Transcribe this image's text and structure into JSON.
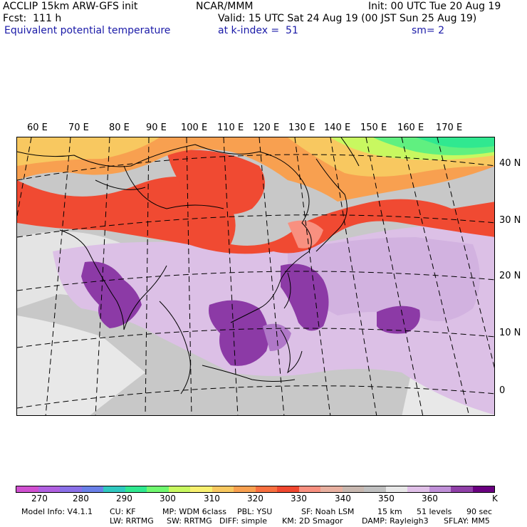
{
  "header": {
    "title": "ACCLIP 15km ARW-GFS init",
    "forecast": "Fcst:  111 h",
    "field_name": "Equivalent potential temperature",
    "center": "NCAR/MMM",
    "init": "Init: 00 UTC Tue 20 Aug 19",
    "valid": "Valid: 15 UTC Sat 24 Aug 19 (00 JST Sun 25 Aug 19)",
    "level": "at k-index =  51",
    "smoothing": "sm= 2"
  },
  "map": {
    "projection": "lambert-conic",
    "longitude_labels": [
      "60 E",
      "70 E",
      "80 E",
      "90 E",
      "100 E",
      "110 E",
      "120 E",
      "130 E",
      "140 E",
      "150 E",
      "160 E",
      "170 E"
    ],
    "latitude_labels": [
      "40 N",
      "30 N",
      "20 N",
      "10 N",
      "0"
    ]
  },
  "colorbar": {
    "unit": "K",
    "tick_labels": [
      "270",
      "280",
      "290",
      "300",
      "310",
      "320",
      "330",
      "340",
      "350",
      "360"
    ],
    "colors": [
      "#d050d0",
      "#b060e0",
      "#8a70e8",
      "#6a80e8",
      "#30c8c0",
      "#30e890",
      "#70f870",
      "#c8f860",
      "#f8f070",
      "#f8c860",
      "#f8a050",
      "#f87040",
      "#f04830",
      "#f89080",
      "#e8b0a0",
      "#c8b8b0",
      "#c0c0c0",
      "#e8e8e8",
      "#e0c0e8",
      "#c090d8",
      "#9040a8",
      "#6a0080"
    ]
  },
  "footer": {
    "line1": [
      "Model Info: V4.1.1",
      "CU: KF",
      "MP: WDM 6class",
      "PBL: YSU",
      "SF: Noah LSM",
      "15 km",
      "51 levels",
      "90 sec"
    ],
    "line2": [
      "LW: RRTMG",
      "SW: RRTMG",
      "DIFF: simple",
      "KM: 2D Smagor",
      "DAMP: Rayleigh3",
      "SFLAY: MM5"
    ]
  }
}
